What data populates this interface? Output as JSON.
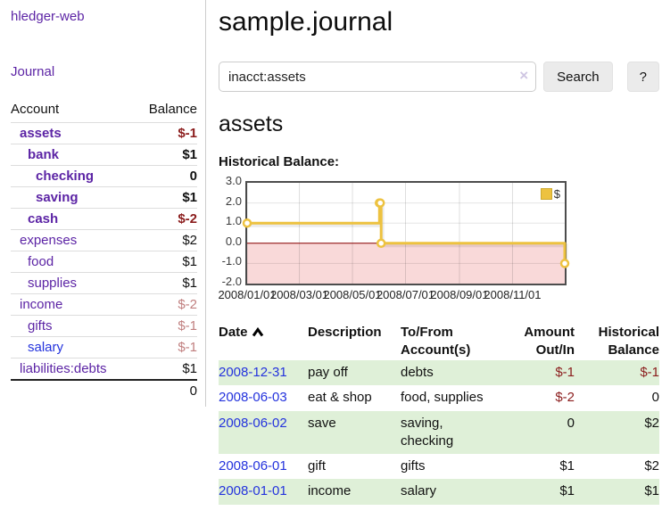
{
  "colors": {
    "link_purple": "#5c24a5",
    "link_blue": "#2433dd",
    "negative_dark": "#8b1d1d",
    "negative_light": "#c07f7f",
    "row_success_green": "#dff0d8",
    "series_yellow": "#edc240"
  },
  "sidebar": {
    "brand": "hledger-web",
    "journal_link": "Journal",
    "accounts": {
      "headers": {
        "account": "Account",
        "balance": "Balance"
      },
      "rows": [
        {
          "name": "assets",
          "balance": "$-1"
        },
        {
          "name": "bank",
          "balance": "$1"
        },
        {
          "name": "checking",
          "balance": "0"
        },
        {
          "name": "saving",
          "balance": "$1"
        },
        {
          "name": "cash",
          "balance": "$-2"
        },
        {
          "name": "expenses",
          "balance": "$2"
        },
        {
          "name": "food",
          "balance": "$1"
        },
        {
          "name": "supplies",
          "balance": "$1"
        },
        {
          "name": "income",
          "balance": "$-2"
        },
        {
          "name": "gifts",
          "balance": "$-1"
        },
        {
          "name": "salary",
          "balance": "$-1"
        },
        {
          "name": "liabilities:debts",
          "balance": "$1"
        }
      ],
      "total": "0"
    }
  },
  "main": {
    "title": "sample.journal",
    "search": {
      "query": "inacct:assets",
      "clear": "×",
      "button": "Search",
      "help": "?"
    },
    "account_heading": "assets",
    "chart_heading": "Historical Balance:"
  },
  "chart_data": {
    "type": "line",
    "title": "Historical Balance",
    "step": true,
    "series": [
      {
        "name": "$",
        "color": "#edc240",
        "points": [
          {
            "date": "2008-01-01",
            "value": 1
          },
          {
            "date": "2008-06-01",
            "value": 2
          },
          {
            "date": "2008-06-02",
            "value": 2
          },
          {
            "date": "2008-06-03",
            "value": 0
          },
          {
            "date": "2008-12-31",
            "value": -1
          }
        ]
      }
    ],
    "x_range": [
      "2008-01-01",
      "2008-12-31"
    ],
    "ylim": [
      -2,
      3
    ],
    "x_ticks": [
      "2008/01/01",
      "2008/03/01",
      "2008/05/01",
      "2008/07/01",
      "2008/09/01",
      "2008/11/01"
    ],
    "y_ticks": [
      3.0,
      2.0,
      1.0,
      0.0,
      -1.0,
      -2.0
    ],
    "grid": true,
    "legend": {
      "label": "$",
      "position": "top-right"
    },
    "negative_region_color": "#f9d9d9",
    "zero_line_color": "#8b0000"
  },
  "register": {
    "headers": {
      "date": "Date",
      "sort": "ascending",
      "description": "Description",
      "accounts": "To/From Account(s)",
      "amount": "Amount Out/In",
      "balance": "Historical Balance"
    },
    "rows": [
      {
        "date": "2008-12-31",
        "description": "pay off",
        "accounts": "debts",
        "amount": "$-1",
        "balance": "$-1"
      },
      {
        "date": "2008-06-03",
        "description": "eat & shop",
        "accounts": "food, supplies",
        "amount": "$-2",
        "balance": "0"
      },
      {
        "date": "2008-06-02",
        "description": "save",
        "accounts": "saving, checking",
        "amount": "0",
        "balance": "$2"
      },
      {
        "date": "2008-06-01",
        "description": "gift",
        "accounts": "gifts",
        "amount": "$1",
        "balance": "$2"
      },
      {
        "date": "2008-01-01",
        "description": "income",
        "accounts": "salary",
        "amount": "$1",
        "balance": "$1"
      }
    ]
  }
}
